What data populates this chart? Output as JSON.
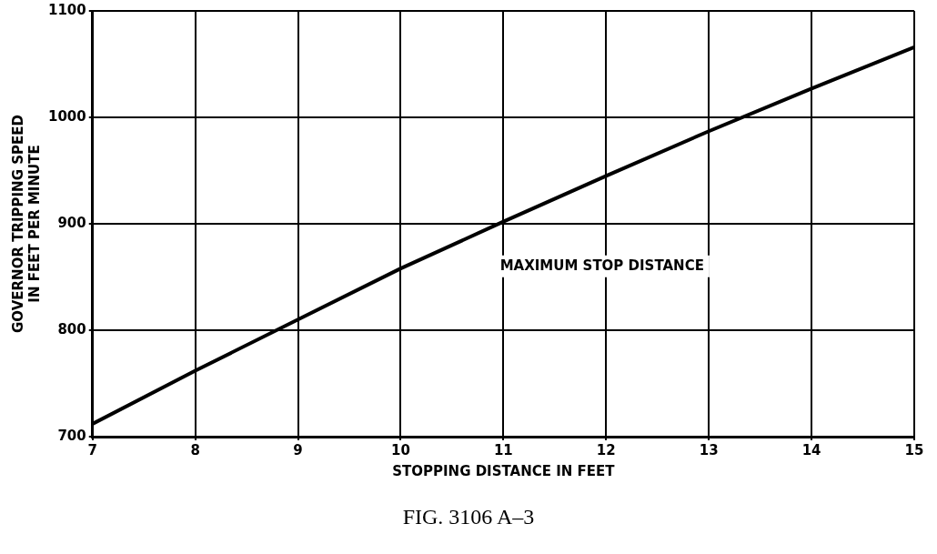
{
  "chart_data": {
    "type": "line",
    "xlabel": "STOPPING DISTANCE IN FEET",
    "ylabel": "GOVERNOR TRIPPING SPEED\nIN FEET PER MINUTE",
    "x": [
      7,
      8,
      9,
      10,
      11,
      12,
      13,
      14,
      15
    ],
    "series": [
      {
        "color": "#000000",
        "values": [
          712,
          762,
          810,
          858,
          902,
          945,
          987,
          1027,
          1066
        ]
      }
    ],
    "xlim": [
      7,
      15
    ],
    "xticks": [
      7,
      8,
      9,
      10,
      11,
      12,
      13,
      14,
      15
    ],
    "ylim": [
      700,
      1100
    ],
    "yticks": [
      700,
      800,
      900,
      1000,
      1100
    ],
    "grid": true,
    "marker": "none",
    "line_style": "solid",
    "annotations": [
      "MAXIMUM STOP DISTANCE",
      "FIG. 3106 A–3"
    ]
  }
}
